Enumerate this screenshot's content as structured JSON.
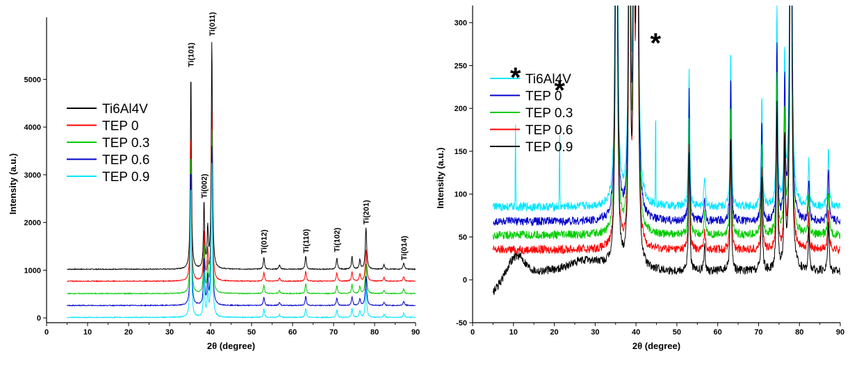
{
  "chart_data": [
    {
      "type": "line",
      "xlabel": "2θ (degree)",
      "ylabel": "Intensity (a.u.)",
      "xlim": [
        0,
        90
      ],
      "ylim": [
        -100,
        6300
      ],
      "xticks": [
        0,
        10,
        20,
        30,
        40,
        50,
        60,
        70,
        80,
        90
      ],
      "yticks": [
        0,
        1000,
        2000,
        3000,
        4000,
        5000
      ],
      "legend_position": "upper-left",
      "series": [
        {
          "name": "Ti6Al4V",
          "color": "#000000",
          "baseline": 1020
        },
        {
          "name": "TEP 0",
          "color": "#ff0000",
          "baseline": 770
        },
        {
          "name": "TEP 0.3",
          "color": "#00cc00",
          "baseline": 510
        },
        {
          "name": "TEP 0.6",
          "color": "#0000cc",
          "baseline": 260
        },
        {
          "name": "TEP 0.9",
          "color": "#00e5ff",
          "baseline": 10
        }
      ],
      "peaks": [
        {
          "x": 35.2,
          "y": 5200,
          "label": "Ti(101)"
        },
        {
          "x": 38.4,
          "y": 2450,
          "label": "Ti(002)"
        },
        {
          "x": 40.3,
          "y": 5850,
          "label": "Ti(011)"
        },
        {
          "x": 53.0,
          "y": 1280,
          "label": "Ti(012)"
        },
        {
          "x": 63.2,
          "y": 1300,
          "label": "Ti(110)"
        },
        {
          "x": 70.8,
          "y": 1320,
          "label": "Ti(102)"
        },
        {
          "x": 77.9,
          "y": 1900,
          "label": "Ti(201)"
        },
        {
          "x": 87.1,
          "y": 1150,
          "label": "Ti(014)"
        }
      ]
    },
    {
      "type": "line",
      "xlabel": "2θ (degree)",
      "ylabel": "Intensity (a.u.)",
      "xlim": [
        0,
        90
      ],
      "ylim": [
        -50,
        320
      ],
      "xticks": [
        0,
        10,
        20,
        30,
        40,
        50,
        60,
        70,
        80,
        90
      ],
      "yticks": [
        -50,
        0,
        50,
        100,
        150,
        200,
        250,
        300
      ],
      "legend_position": "upper-left",
      "series": [
        {
          "name": "Ti6Al4V",
          "color": "#00e5ff",
          "baseline": 85
        },
        {
          "name": "TEP 0",
          "color": "#0000cc",
          "baseline": 68
        },
        {
          "name": "TEP 0.3",
          "color": "#00cc00",
          "baseline": 52
        },
        {
          "name": "TEP 0.6",
          "color": "#ff0000",
          "baseline": 35
        },
        {
          "name": "TEP 0.9",
          "color": "#000000",
          "baseline": 10
        }
      ],
      "markers": [
        {
          "x": 10.5,
          "y": 240,
          "label": "*"
        },
        {
          "x": 21.3,
          "y": 225,
          "label": "*"
        },
        {
          "x": 44.8,
          "y": 280,
          "label": "*"
        }
      ]
    }
  ]
}
